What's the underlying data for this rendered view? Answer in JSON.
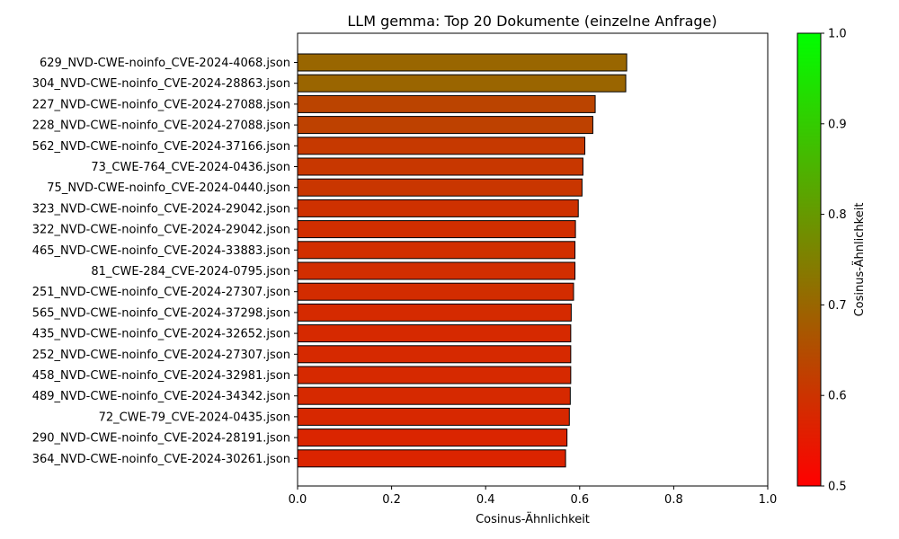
{
  "chart_data": {
    "type": "bar",
    "orientation": "horizontal",
    "title": "LLM gemma: Top 20 Dokumente (einzelne Anfrage)",
    "xlabel": "Cosinus-Ähnlichkeit",
    "ylabel": "",
    "xlim": [
      0,
      1.0
    ],
    "xticks": [
      "0.0",
      "0.2",
      "0.4",
      "0.6",
      "0.8",
      "1.0"
    ],
    "grid": false,
    "categories": [
      "629_NVD-CWE-noinfo_CVE-2024-4068.json",
      "304_NVD-CWE-noinfo_CVE-2024-28863.json",
      "227_NVD-CWE-noinfo_CVE-2024-27088.json",
      "228_NVD-CWE-noinfo_CVE-2024-27088.json",
      "562_NVD-CWE-noinfo_CVE-2024-37166.json",
      "73_CWE-764_CVE-2024-0436.json",
      "75_NVD-CWE-noinfo_CVE-2024-0440.json",
      "323_NVD-CWE-noinfo_CVE-2024-29042.json",
      "322_NVD-CWE-noinfo_CVE-2024-29042.json",
      "465_NVD-CWE-noinfo_CVE-2024-33883.json",
      "81_CWE-284_CVE-2024-0795.json",
      "251_NVD-CWE-noinfo_CVE-2024-27307.json",
      "565_NVD-CWE-noinfo_CVE-2024-37298.json",
      "435_NVD-CWE-noinfo_CVE-2024-32652.json",
      "252_NVD-CWE-noinfo_CVE-2024-27307.json",
      "458_NVD-CWE-noinfo_CVE-2024-32981.json",
      "489_NVD-CWE-noinfo_CVE-2024-34342.json",
      "72_CWE-79_CVE-2024-0435.json",
      "290_NVD-CWE-noinfo_CVE-2024-28191.json",
      "364_NVD-CWE-noinfo_CVE-2024-30261.json"
    ],
    "values": [
      0.7,
      0.698,
      0.633,
      0.628,
      0.611,
      0.607,
      0.605,
      0.597,
      0.591,
      0.59,
      0.59,
      0.587,
      0.582,
      0.581,
      0.581,
      0.581,
      0.58,
      0.578,
      0.573,
      0.57
    ],
    "bar_edge_color": "#000000",
    "colorbar": {
      "label": "Cosinus-Ähnlichkeit",
      "range": [
        0.5,
        1.0
      ],
      "ticks": [
        "0.5",
        "0.6",
        "0.7",
        "0.8",
        "0.9",
        "1.0"
      ],
      "color_low": "#ff0000",
      "color_high": "#00ff00"
    }
  }
}
